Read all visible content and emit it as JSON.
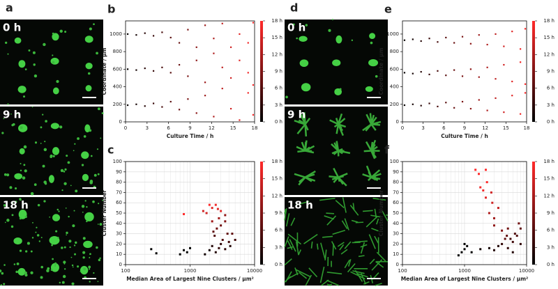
{
  "images": [
    {
      "label": "a",
      "frames": [
        "0 h",
        "9 h",
        "18 h"
      ]
    },
    {
      "label": "d",
      "frames": [
        "0 h",
        "9 h",
        "18 h"
      ]
    }
  ],
  "chart_data": [
    {
      "type": "scatter",
      "label": "b",
      "xlabel": "Culture Time / h",
      "ylabel": "Coordinate / μm",
      "x": [
        0.3,
        0.3,
        0.3,
        1.5,
        1.5,
        1.5,
        2.7,
        2.7,
        2.7,
        3.9,
        3.9,
        3.9,
        5.1,
        5.1,
        5.1,
        6.3,
        6.3,
        6.3,
        7.5,
        7.5,
        7.5,
        8.7,
        8.7,
        8.7,
        9.9,
        9.9,
        9.9,
        11.1,
        11.1,
        11.1,
        12.3,
        12.3,
        12.3,
        13.5,
        13.5,
        13.5,
        14.7,
        14.7,
        14.7,
        15.9,
        15.9,
        15.9,
        17.1,
        17.1,
        17.1,
        17.8,
        17.8,
        17.8
      ],
      "y": [
        190,
        600,
        1000,
        200,
        590,
        990,
        180,
        610,
        1010,
        210,
        580,
        980,
        170,
        620,
        1020,
        230,
        560,
        960,
        140,
        650,
        900,
        260,
        520,
        1050,
        100,
        700,
        850,
        300,
        450,
        1100,
        60,
        780,
        950,
        380,
        620,
        1120,
        150,
        850,
        500,
        20,
        700,
        1000,
        330,
        900,
        560,
        80,
        1130,
        420
      ],
      "xlim": [
        0,
        18
      ],
      "xticks": [
        0,
        3,
        6,
        9,
        12,
        15,
        18
      ],
      "ylim": [
        0,
        1150
      ],
      "yticks": [
        0,
        200,
        400,
        600,
        800,
        1000
      ],
      "color_by": "x",
      "grid": false,
      "colorbar": {
        "lim": [
          0,
          18
        ],
        "colors": [
          "#000000",
          "#ff2a2a"
        ],
        "ticks": [
          {
            "value": 0,
            "label": "0 h"
          },
          {
            "value": 3,
            "label": "3 h"
          },
          {
            "value": 6,
            "label": "6 h"
          },
          {
            "value": 9,
            "label": "9 h"
          },
          {
            "value": 12,
            "label": "12 h"
          },
          {
            "value": 15,
            "label": "15 h"
          },
          {
            "value": 18,
            "label": "18 h"
          }
        ]
      }
    },
    {
      "type": "scatter",
      "label": "c",
      "xlabel": "Median Area of Largest Nine Clusters / μm²",
      "ylabel": "Cluster Number",
      "x": [
        250,
        300,
        700,
        800,
        900,
        1000,
        1700,
        2000,
        2200,
        2500,
        2800,
        3000,
        3500,
        2400,
        3200,
        4000,
        2600,
        3000,
        3800,
        2200,
        2800,
        3500,
        1800,
        2200,
        2500,
        3000,
        1600,
        800,
        2000,
        2700,
        3500,
        4500,
        5000,
        4200,
        2300
      ],
      "y": [
        15,
        11,
        10,
        14,
        12,
        16,
        10,
        14,
        18,
        12,
        16,
        20,
        15,
        28,
        24,
        22,
        35,
        38,
        30,
        42,
        45,
        48,
        50,
        55,
        58,
        52,
        52,
        49,
        58,
        54,
        42,
        30,
        24,
        18,
        32
      ],
      "colors": [
        "#000000",
        "#000000",
        "#000000",
        "#000000",
        "#000000",
        "#000000",
        "#100000",
        "#100000",
        "#200404",
        "#200404",
        "#300606",
        "#300606",
        "#300606",
        "#500a0a",
        "#500a0a",
        "#400808",
        "#701010",
        "#701010",
        "#601010",
        "#a01818",
        "#a01818",
        "#901616",
        "#d02424",
        "#e02828",
        "#f02a2a",
        "#e02828",
        "#d02424",
        "#ff2a2a",
        "#ff2a2a",
        "#e02828",
        "#801414",
        "#601010",
        "#400808",
        "#200404",
        "#601010"
      ],
      "xlim": [
        100,
        10000
      ],
      "xticks": [
        100,
        1000,
        10000
      ],
      "log_x": true,
      "ylim": [
        0,
        100
      ],
      "yticks": [
        0,
        10,
        20,
        30,
        40,
        50,
        60,
        70,
        80,
        90,
        100
      ],
      "grid": true,
      "colorbar": {
        "lim": [
          0,
          18
        ],
        "colors": [
          "#000000",
          "#ff2a2a"
        ],
        "ticks": [
          {
            "value": 0,
            "label": "0 h"
          },
          {
            "value": 3,
            "label": "3 h"
          },
          {
            "value": 6,
            "label": "6 h"
          },
          {
            "value": 9,
            "label": "9 h"
          },
          {
            "value": 12,
            "label": "12 h"
          },
          {
            "value": 15,
            "label": "15 h"
          },
          {
            "value": 18,
            "label": "18 h"
          }
        ]
      }
    },
    {
      "type": "scatter",
      "label": "e",
      "xlabel": "Culture Time / h",
      "ylabel": "Coordinate / μm",
      "x": [
        0.3,
        0.3,
        0.3,
        1.5,
        1.5,
        1.5,
        2.7,
        2.7,
        2.7,
        3.9,
        3.9,
        3.9,
        5.1,
        5.1,
        5.1,
        6.3,
        6.3,
        6.3,
        7.5,
        7.5,
        7.5,
        8.7,
        8.7,
        8.7,
        9.9,
        9.9,
        9.9,
        11.1,
        11.1,
        11.1,
        12.3,
        12.3,
        12.3,
        13.5,
        13.5,
        13.5,
        14.7,
        14.7,
        14.7,
        15.9,
        15.9,
        15.9,
        17.1,
        17.1,
        17.1,
        17.8,
        17.8,
        17.8
      ],
      "y": [
        190,
        560,
        930,
        200,
        550,
        940,
        185,
        570,
        920,
        210,
        540,
        950,
        175,
        580,
        910,
        220,
        530,
        960,
        160,
        590,
        900,
        230,
        520,
        970,
        150,
        600,
        890,
        250,
        510,
        990,
        130,
        620,
        880,
        270,
        490,
        1000,
        110,
        650,
        860,
        300,
        460,
        1030,
        90,
        680,
        830,
        330,
        430,
        1060
      ],
      "xlim": [
        0,
        18
      ],
      "xticks": [
        0,
        3,
        6,
        9,
        12,
        15,
        18
      ],
      "ylim": [
        0,
        1150
      ],
      "yticks": [
        0,
        200,
        400,
        600,
        800,
        1000
      ],
      "color_by": "x",
      "grid": false,
      "colorbar": {
        "lim": [
          0,
          18
        ],
        "colors": [
          "#000000",
          "#ff2a2a"
        ],
        "ticks": [
          {
            "value": 0,
            "label": "0 h"
          },
          {
            "value": 3,
            "label": "3 h"
          },
          {
            "value": 6,
            "label": "6 h"
          },
          {
            "value": 9,
            "label": "9 h"
          },
          {
            "value": 12,
            "label": "12 h"
          },
          {
            "value": 15,
            "label": "15 h"
          },
          {
            "value": 18,
            "label": "18 h"
          }
        ]
      }
    },
    {
      "type": "scatter",
      "label": "f",
      "xlabel": "Median Area of Largest Nine Clusters / μm²",
      "ylabel": "Cluster Number",
      "x": [
        800,
        900,
        1000,
        1000,
        1100,
        1300,
        1800,
        2500,
        3000,
        3500,
        4000,
        5000,
        6000,
        7000,
        8000,
        7500,
        6500,
        5500,
        8000,
        6000,
        4500,
        4000,
        3000,
        3500,
        2500,
        2800,
        2200,
        2000,
        1800,
        2300,
        1700,
        1500,
        2200,
        2700,
        3000,
        5000,
        4800
      ],
      "y": [
        9,
        12,
        15,
        20,
        18,
        12,
        15,
        16,
        14,
        18,
        20,
        16,
        22,
        28,
        35,
        40,
        30,
        25,
        20,
        12,
        25,
        33,
        45,
        55,
        50,
        60,
        65,
        72,
        75,
        80,
        88,
        92,
        92,
        70,
        38,
        35,
        28
      ],
      "colors": [
        "#000000",
        "#000000",
        "#000000",
        "#000000",
        "#000000",
        "#000000",
        "#100000",
        "#100000",
        "#200404",
        "#200404",
        "#300606",
        "#300606",
        "#400808",
        "#501010",
        "#601010",
        "#701010",
        "#501010",
        "#400808",
        "#300606",
        "#200404",
        "#601010",
        "#801414",
        "#a01818",
        "#c02020",
        "#b01c1c",
        "#d02424",
        "#e02828",
        "#f02a2a",
        "#f02a2a",
        "#ff2a2a",
        "#ff2a2a",
        "#ff2a2a",
        "#ff2a2a",
        "#d02424",
        "#901616",
        "#701010",
        "#601010"
      ],
      "xlim": [
        100,
        10000
      ],
      "xticks": [
        100,
        1000,
        10000
      ],
      "log_x": true,
      "ylim": [
        0,
        100
      ],
      "yticks": [
        0,
        10,
        20,
        30,
        40,
        50,
        60,
        70,
        80,
        90,
        100
      ],
      "grid": true,
      "colorbar": {
        "lim": [
          0,
          18
        ],
        "colors": [
          "#000000",
          "#ff2a2a"
        ],
        "ticks": [
          {
            "value": 0,
            "label": "0 h"
          },
          {
            "value": 3,
            "label": "3 h"
          },
          {
            "value": 6,
            "label": "6 h"
          },
          {
            "value": 9,
            "label": "9 h"
          },
          {
            "value": 12,
            "label": "12 h"
          },
          {
            "value": 15,
            "label": "15 h"
          },
          {
            "value": 18,
            "label": "18 h"
          }
        ]
      }
    }
  ]
}
